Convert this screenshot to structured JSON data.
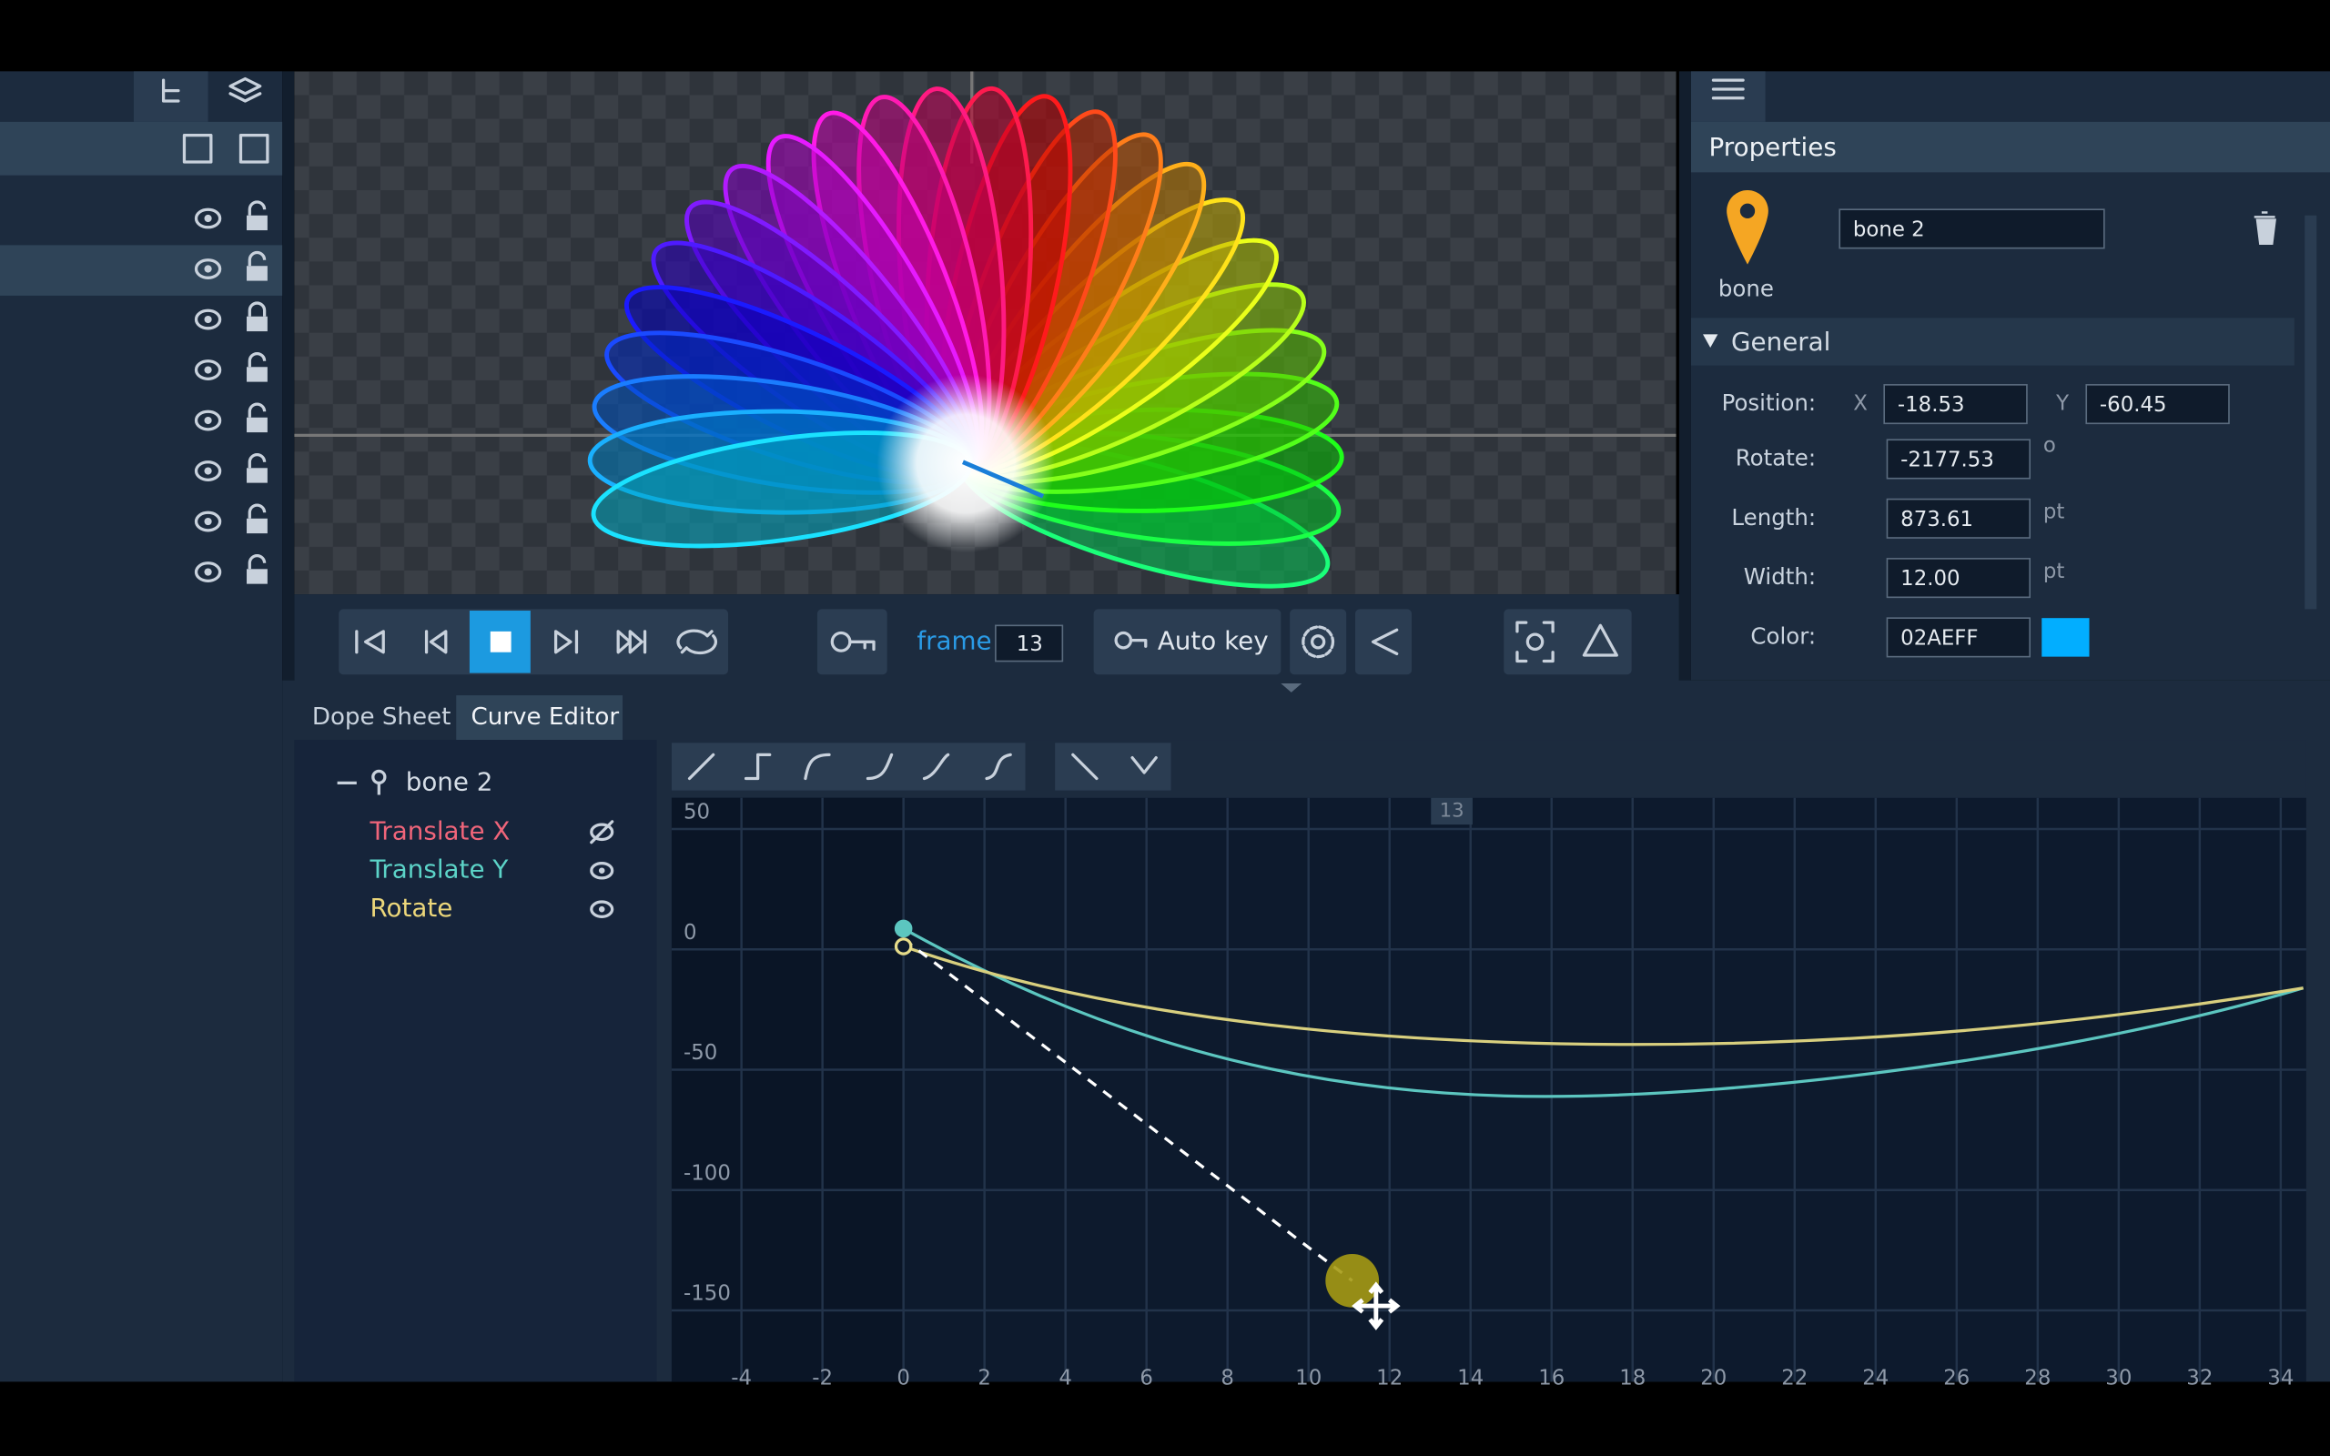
{
  "toolbar": {
    "frame_label": "frame",
    "frame_value": "13",
    "auto_key": "Auto key"
  },
  "properties": {
    "title": "Properties",
    "name": "bone 2",
    "type_label": "bone",
    "section": "General",
    "position_label": "Position:",
    "x_label": "X",
    "x_value": "-18.53",
    "y_label": "Y",
    "y_value": "-60.45",
    "rotate_label": "Rotate:",
    "rotate_value": "-2177.53",
    "rotate_unit": "o",
    "length_label": "Length:",
    "length_value": "873.61",
    "length_unit": "pt",
    "width_label": "Width:",
    "width_value": "12.00",
    "width_unit": "pt",
    "color_label": "Color:",
    "color_value": "02AEFF"
  },
  "curve_editor": {
    "tabs": [
      "Dope Sheet",
      "Curve Editor"
    ],
    "bone": "bone 2",
    "channels": [
      "Translate X",
      "Translate Y",
      "Rotate"
    ],
    "y_axis": [
      "50",
      "0",
      "-50",
      "-100",
      "-150"
    ],
    "x_axis": [
      "-4",
      "-2",
      "0",
      "2",
      "4",
      "6",
      "8",
      "10",
      "12",
      "14",
      "16",
      "18",
      "20",
      "22",
      "24",
      "26",
      "28",
      "30",
      "32",
      "34"
    ],
    "current_frame": "13"
  }
}
